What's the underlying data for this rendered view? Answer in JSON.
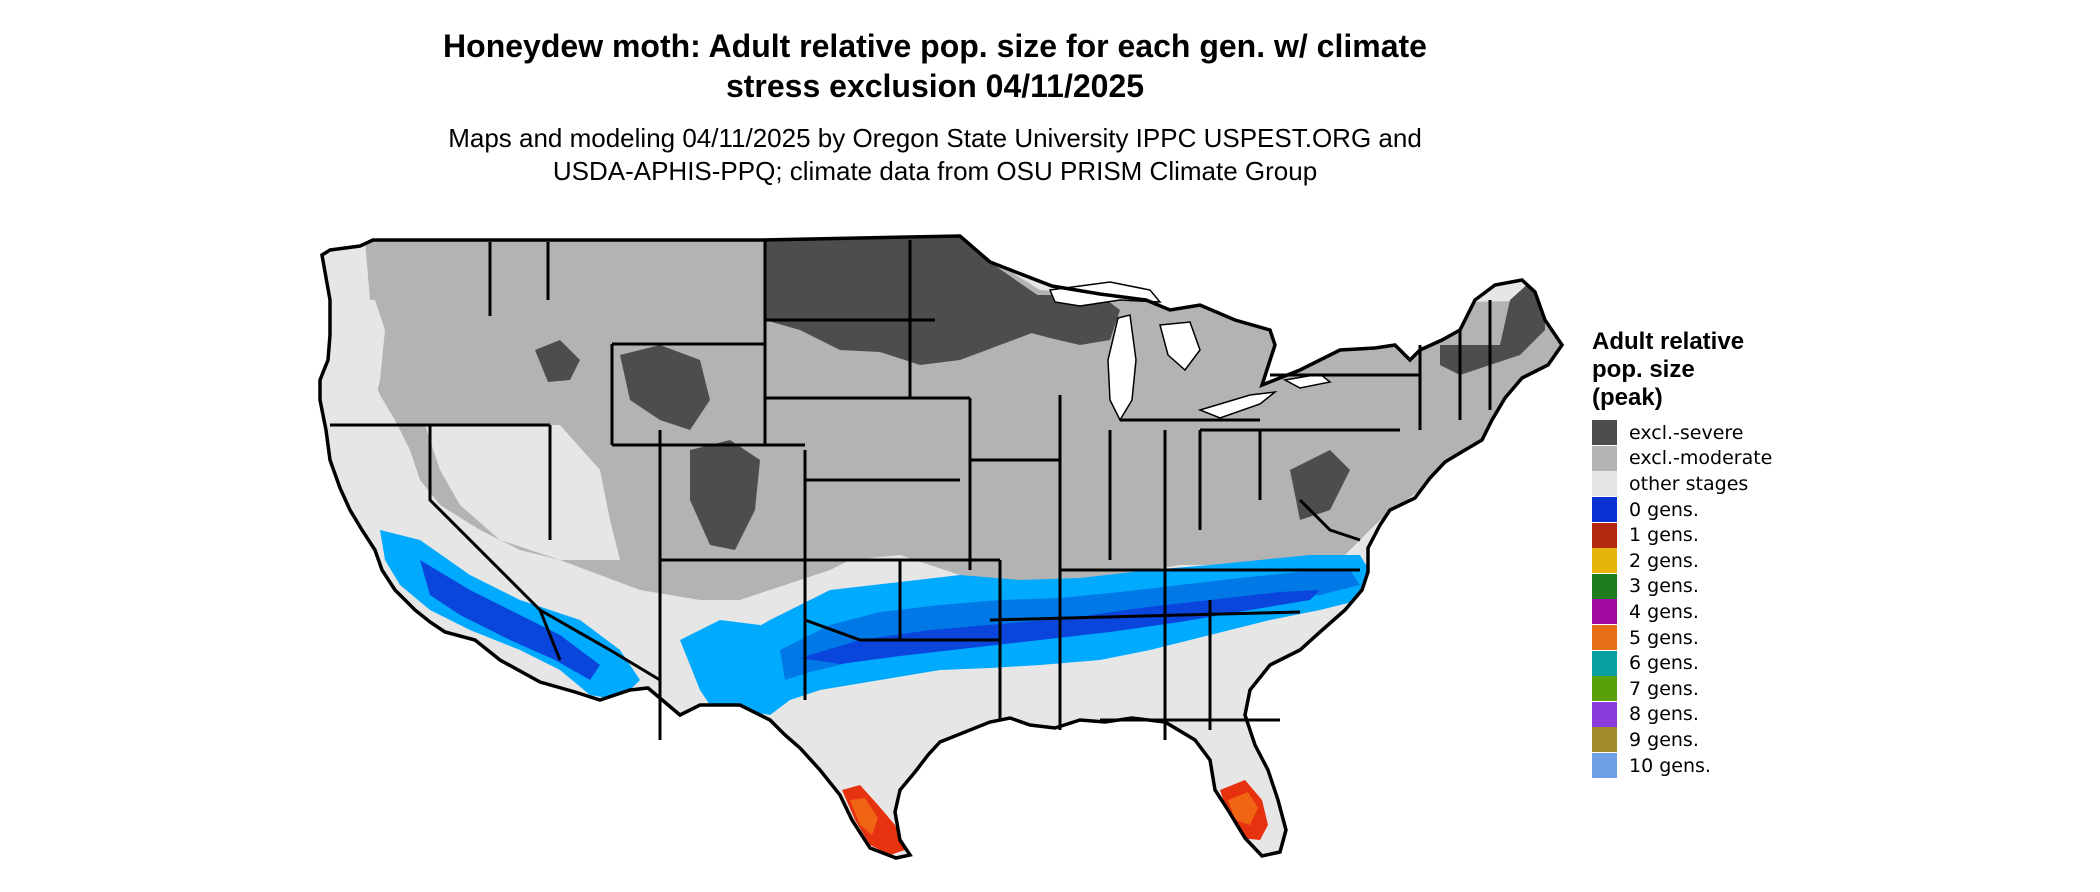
{
  "title_lines": [
    "Honeydew moth: Adult relative pop. size for each gen. w/ climate",
    "stress exclusion 04/11/2025"
  ],
  "subtitle_lines": [
    "Maps and modeling 04/11/2025 by Oregon State University IPPC USPEST.ORG and",
    "USDA-APHIS-PPQ; climate data from OSU PRISM Climate Group"
  ],
  "legend": {
    "title_lines": [
      "Adult relative",
      "pop. size",
      "(peak)"
    ],
    "items": [
      {
        "label": "excl.-severe",
        "color": "#4d4d4d"
      },
      {
        "label": "excl.-moderate",
        "color": "#b3b3b3"
      },
      {
        "label": "other stages",
        "color": "#e6e6e6"
      },
      {
        "label": "0 gens.",
        "color": "#0a32d2"
      },
      {
        "label": "1 gens.",
        "color": "#b4280f"
      },
      {
        "label": "2 gens.",
        "color": "#e6b40a"
      },
      {
        "label": "3 gens.",
        "color": "#1e7d1e"
      },
      {
        "label": "4 gens.",
        "color": "#a00aa0"
      },
      {
        "label": "5 gens.",
        "color": "#e66e14"
      },
      {
        "label": "6 gens.",
        "color": "#0aa0a0"
      },
      {
        "label": "7 gens.",
        "color": "#5aa00a"
      },
      {
        "label": "8 gens.",
        "color": "#8c3cdc"
      },
      {
        "label": "9 gens.",
        "color": "#a08c28"
      },
      {
        "label": "10 gens.",
        "color": "#6ea0e6"
      }
    ]
  },
  "map_colors": {
    "severe": "#4d4d4d",
    "moderate": "#b3b3b3",
    "other": "#e6e6e6",
    "blue_light": "#00aaff",
    "blue_mid": "#0078e6",
    "blue_dark": "#0a46dc",
    "red": "#e6320f",
    "orange": "#f06414",
    "state_border": "#000000",
    "lake": "#ffffff"
  }
}
